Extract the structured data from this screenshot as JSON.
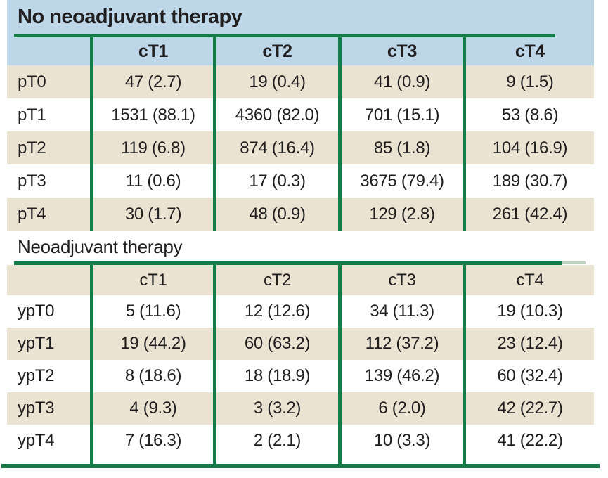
{
  "colors": {
    "header_blue": "#bdd7e9",
    "row_beige": "#ebe3d2",
    "row_white": "#ffffff",
    "line_green": "#147b49",
    "line_green_faded": "#bcd4c1",
    "text": "#211e1f"
  },
  "chart_data": [
    {
      "type": "table",
      "title": "No neoadjuvant therapy",
      "columns": [
        "cT1",
        "cT2",
        "cT3",
        "cT4"
      ],
      "row_labels": [
        "pT0",
        "pT1",
        "pT2",
        "pT3",
        "pT4"
      ],
      "rows": [
        [
          "47 (2.7)",
          "19 (0.4)",
          "41 (0.9)",
          "9 (1.5)"
        ],
        [
          "1531 (88.1)",
          "4360 (82.0)",
          "701 (15.1)",
          "53 (8.6)"
        ],
        [
          "119 (6.8)",
          "874 (16.4)",
          "85 (1.8)",
          "104 (16.9)"
        ],
        [
          "11 (0.6)",
          "17 (0.3)",
          "3675 (79.4)",
          "189 (30.7)"
        ],
        [
          "30 (1.7)",
          "48 (0.9)",
          "129 (2.8)",
          "261 (42.4)"
        ]
      ]
    },
    {
      "type": "table",
      "title": "Neoadjuvant therapy",
      "columns": [
        "cT1",
        "cT2",
        "cT3",
        "cT4"
      ],
      "row_labels": [
        "ypT0",
        "ypT1",
        "ypT2",
        "ypT3",
        "ypT4"
      ],
      "rows": [
        [
          "5 (11.6)",
          "12 (12.6)",
          "34 (11.3)",
          "19 (10.3)"
        ],
        [
          "19 (44.2)",
          "60 (63.2)",
          "112 (37.2)",
          "23 (12.4)"
        ],
        [
          "8 (18.6)",
          "18 (18.9)",
          "139 (46.2)",
          "60 (32.4)"
        ],
        [
          "4 (9.3)",
          "3 (3.2)",
          "6 (2.0)",
          "42 (22.7)"
        ],
        [
          "7 (16.3)",
          "2 (2.1)",
          "10 (3.3)",
          "41 (22.2)"
        ]
      ]
    }
  ]
}
